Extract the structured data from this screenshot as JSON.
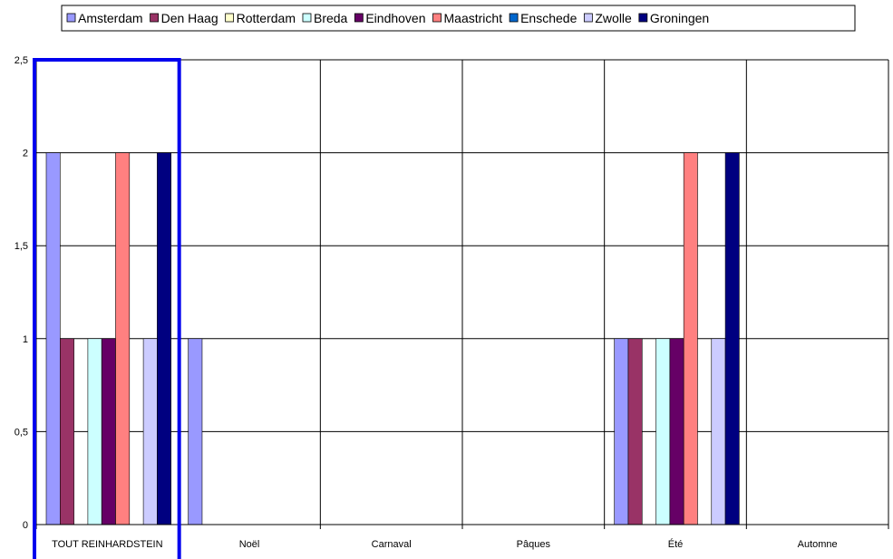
{
  "chart_data": {
    "type": "bar",
    "categories": [
      "TOUT REINHARDSTEIN",
      "Noël",
      "Carnaval",
      "Pâques",
      "Été",
      "Automne"
    ],
    "series": [
      {
        "name": "Amsterdam",
        "color": "#9999ff",
        "values": [
          2,
          1,
          0,
          0,
          1,
          0
        ]
      },
      {
        "name": "Den Haag",
        "color": "#993366",
        "values": [
          1,
          0,
          0,
          0,
          1,
          0
        ]
      },
      {
        "name": "Rotterdam",
        "color": "#ffffcc",
        "values": [
          0,
          0,
          0,
          0,
          0,
          0
        ]
      },
      {
        "name": "Breda",
        "color": "#ccffff",
        "values": [
          1,
          0,
          0,
          0,
          1,
          0
        ]
      },
      {
        "name": "Eindhoven",
        "color": "#660066",
        "values": [
          1,
          0,
          0,
          0,
          1,
          0
        ]
      },
      {
        "name": "Maastricht",
        "color": "#ff8080",
        "values": [
          2,
          0,
          0,
          0,
          2,
          0
        ]
      },
      {
        "name": "Enschede",
        "color": "#0066cc",
        "values": [
          0,
          0,
          0,
          0,
          0,
          0
        ]
      },
      {
        "name": "Zwolle",
        "color": "#ccccff",
        "values": [
          1,
          0,
          0,
          0,
          1,
          0
        ]
      },
      {
        "name": "Groningen",
        "color": "#000080",
        "values": [
          2,
          0,
          0,
          0,
          2,
          0
        ]
      }
    ],
    "yticks": [
      "0",
      "0,5",
      "1",
      "1,5",
      "2",
      "2,5"
    ],
    "ylim": [
      0,
      2.5
    ],
    "grid": true,
    "legend_position": "top",
    "highlight_category": 0,
    "highlight_color": "#0000ee"
  }
}
